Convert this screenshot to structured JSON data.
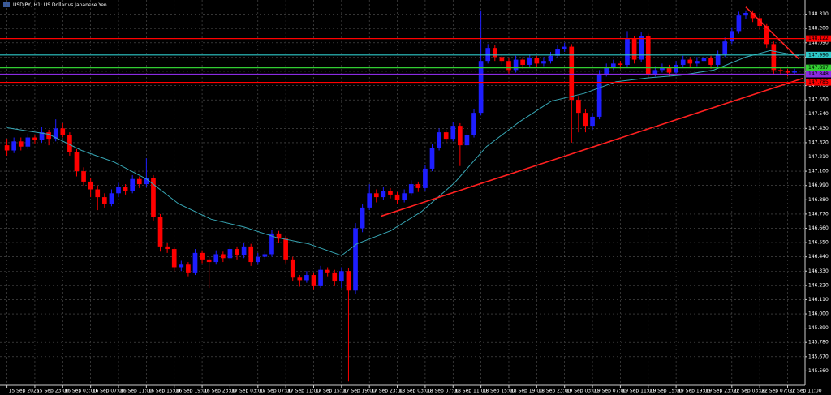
{
  "chart_data": {
    "type": "candlestick",
    "title": "USDJPY, H1: US Dollar vs Japanese Yen",
    "up_color": "#1e1eff",
    "down_color": "#ff0000",
    "ma_color": "#37a6b4",
    "grid": true,
    "xlim": [
      -1,
      114.5
    ],
    "ylim": [
      145.45,
      148.42
    ],
    "yticks": [
      {
        "value": 148.31,
        "label": "148.310"
      },
      {
        "value": 148.2,
        "label": "148.200"
      },
      {
        "value": 148.09,
        "label": "148.090"
      },
      {
        "value": 147.98,
        "label": "147.980"
      },
      {
        "value": 147.87,
        "label": "147.870"
      },
      {
        "value": 147.76,
        "label": "147.760"
      },
      {
        "value": 147.65,
        "label": "147.650"
      },
      {
        "value": 147.54,
        "label": "147.540"
      },
      {
        "value": 147.43,
        "label": "147.430"
      },
      {
        "value": 147.32,
        "label": "147.320"
      },
      {
        "value": 147.21,
        "label": "147.210"
      },
      {
        "value": 147.1,
        "label": "147.100"
      },
      {
        "value": 146.99,
        "label": "146.990"
      },
      {
        "value": 146.88,
        "label": "146.880"
      },
      {
        "value": 146.77,
        "label": "146.770"
      },
      {
        "value": 146.66,
        "label": "146.660"
      },
      {
        "value": 146.55,
        "label": "146.550"
      },
      {
        "value": 146.44,
        "label": "146.440"
      },
      {
        "value": 146.33,
        "label": "146.330"
      },
      {
        "value": 146.22,
        "label": "146.220"
      },
      {
        "value": 146.11,
        "label": "146.110"
      },
      {
        "value": 146.0,
        "label": "146.000"
      },
      {
        "value": 145.89,
        "label": "145.890"
      },
      {
        "value": 145.78,
        "label": "145.780"
      },
      {
        "value": 145.67,
        "label": "145.670"
      },
      {
        "value": 145.56,
        "label": "145.560"
      }
    ],
    "xticks": [
      {
        "value": 0,
        "label": "15 Sep 2025"
      },
      {
        "value": 4,
        "label": "15 Sep 23:00"
      },
      {
        "value": 8,
        "label": "16 Sep 03:00"
      },
      {
        "value": 12,
        "label": "16 Sep 07:00"
      },
      {
        "value": 16,
        "label": "16 Sep 11:00"
      },
      {
        "value": 20,
        "label": "16 Sep 15:00"
      },
      {
        "value": 24,
        "label": "16 Sep 19:00"
      },
      {
        "value": 28,
        "label": "16 Sep 23:00"
      },
      {
        "value": 32,
        "label": "17 Sep 03:00"
      },
      {
        "value": 36,
        "label": "17 Sep 07:00"
      },
      {
        "value": 40,
        "label": "17 Sep 11:00"
      },
      {
        "value": 44,
        "label": "17 Sep 15:00"
      },
      {
        "value": 48,
        "label": "17 Sep 19:00"
      },
      {
        "value": 52,
        "label": "17 Sep 23:00"
      },
      {
        "value": 56,
        "label": "18 Sep 03:00"
      },
      {
        "value": 60,
        "label": "18 Sep 07:00"
      },
      {
        "value": 64,
        "label": "18 Sep 11:00"
      },
      {
        "value": 68,
        "label": "18 Sep 15:00"
      },
      {
        "value": 72,
        "label": "18 Sep 19:00"
      },
      {
        "value": 76,
        "label": "18 Sep 23:00"
      },
      {
        "value": 80,
        "label": "19 Sep 03:00"
      },
      {
        "value": 84,
        "label": "19 Sep 07:00"
      },
      {
        "value": 88,
        "label": "19 Sep 11:00"
      },
      {
        "value": 92,
        "label": "19 Sep 15:00"
      },
      {
        "value": 96,
        "label": "19 Sep 19:00"
      },
      {
        "value": 100,
        "label": "19 Sep 23:00"
      },
      {
        "value": 104,
        "label": "22 Sep 03:00"
      },
      {
        "value": 108,
        "label": "22 Sep 07:00"
      },
      {
        "value": 112,
        "label": "22 Sep 11:00"
      }
    ],
    "candles": [
      [
        147.3,
        147.35,
        147.22,
        147.26
      ],
      [
        147.26,
        147.36,
        147.24,
        147.33
      ],
      [
        147.33,
        147.36,
        147.26,
        147.29
      ],
      [
        147.29,
        147.39,
        147.27,
        147.36
      ],
      [
        147.36,
        147.38,
        147.31,
        147.34
      ],
      [
        147.34,
        147.44,
        147.32,
        147.4
      ],
      [
        147.4,
        147.42,
        147.3,
        147.35
      ],
      [
        147.35,
        147.5,
        147.33,
        147.43
      ],
      [
        147.43,
        147.47,
        147.36,
        147.38
      ],
      [
        147.38,
        147.4,
        147.22,
        147.25
      ],
      [
        147.25,
        147.27,
        147.06,
        147.1
      ],
      [
        147.1,
        147.13,
        146.99,
        147.02
      ],
      [
        147.02,
        147.05,
        146.9,
        146.96
      ],
      [
        146.96,
        146.99,
        146.8,
        146.9
      ],
      [
        146.9,
        146.93,
        146.82,
        146.85
      ],
      [
        146.85,
        146.96,
        146.83,
        146.93
      ],
      [
        146.93,
        147.01,
        146.9,
        146.98
      ],
      [
        146.98,
        147.0,
        146.92,
        146.95
      ],
      [
        146.95,
        147.07,
        146.93,
        147.04
      ],
      [
        147.04,
        147.06,
        146.97,
        147.0
      ],
      [
        147.0,
        147.2,
        146.98,
        147.05
      ],
      [
        147.05,
        147.07,
        146.72,
        146.75
      ],
      [
        146.75,
        146.77,
        146.48,
        146.52
      ],
      [
        146.52,
        146.55,
        146.47,
        146.5
      ],
      [
        146.5,
        146.52,
        146.33,
        146.36
      ],
      [
        146.36,
        146.41,
        146.33,
        146.38
      ],
      [
        146.38,
        146.4,
        146.29,
        146.32
      ],
      [
        146.32,
        146.5,
        146.3,
        146.47
      ],
      [
        146.47,
        146.49,
        146.39,
        146.42
      ],
      [
        146.42,
        146.44,
        146.2,
        146.4
      ],
      [
        146.4,
        146.49,
        146.38,
        146.46
      ],
      [
        146.46,
        146.48,
        146.4,
        146.43
      ],
      [
        146.43,
        146.53,
        146.41,
        146.5
      ],
      [
        146.5,
        146.52,
        146.42,
        146.45
      ],
      [
        146.45,
        146.55,
        146.43,
        146.52
      ],
      [
        146.52,
        146.54,
        146.37,
        146.4
      ],
      [
        146.4,
        146.47,
        146.38,
        146.44
      ],
      [
        146.44,
        146.49,
        146.42,
        146.46
      ],
      [
        146.46,
        146.65,
        146.44,
        146.62
      ],
      [
        146.62,
        146.64,
        146.55,
        146.58
      ],
      [
        146.58,
        146.6,
        146.39,
        146.42
      ],
      [
        146.42,
        146.44,
        146.25,
        146.28
      ],
      [
        146.28,
        146.3,
        146.21,
        146.26
      ],
      [
        146.26,
        146.33,
        146.24,
        146.3
      ],
      [
        146.3,
        146.32,
        146.19,
        146.22
      ],
      [
        146.22,
        146.37,
        146.2,
        146.34
      ],
      [
        146.34,
        146.36,
        146.29,
        146.32
      ],
      [
        146.32,
        146.34,
        146.22,
        146.25
      ],
      [
        146.25,
        146.36,
        146.2,
        146.33
      ],
      [
        146.33,
        146.35,
        145.48,
        146.18
      ],
      [
        146.18,
        146.7,
        146.15,
        146.66
      ],
      [
        146.66,
        146.85,
        146.63,
        146.82
      ],
      [
        146.82,
        147.0,
        146.8,
        146.93
      ],
      [
        146.93,
        146.96,
        146.86,
        146.9
      ],
      [
        146.9,
        146.98,
        146.88,
        146.95
      ],
      [
        146.95,
        146.97,
        146.89,
        146.92
      ],
      [
        146.92,
        146.94,
        146.85,
        146.88
      ],
      [
        146.88,
        146.96,
        146.86,
        146.93
      ],
      [
        146.93,
        147.03,
        146.91,
        147.0
      ],
      [
        147.0,
        147.02,
        146.94,
        146.97
      ],
      [
        146.97,
        147.15,
        146.95,
        147.12
      ],
      [
        147.12,
        147.31,
        147.1,
        147.28
      ],
      [
        147.28,
        147.43,
        147.26,
        147.4
      ],
      [
        147.4,
        147.42,
        147.32,
        147.35
      ],
      [
        147.35,
        147.48,
        147.33,
        147.45
      ],
      [
        147.45,
        147.47,
        147.14,
        147.3
      ],
      [
        147.3,
        147.41,
        147.28,
        147.38
      ],
      [
        147.38,
        147.58,
        147.36,
        147.55
      ],
      [
        147.55,
        148.34,
        147.53,
        147.95
      ],
      [
        147.95,
        148.08,
        147.93,
        148.05
      ],
      [
        148.05,
        148.07,
        147.95,
        147.98
      ],
      [
        147.98,
        148.0,
        147.92,
        147.95
      ],
      [
        147.95,
        147.97,
        147.85,
        147.88
      ],
      [
        147.88,
        147.99,
        147.86,
        147.96
      ],
      [
        147.96,
        147.98,
        147.89,
        147.92
      ],
      [
        147.92,
        148.0,
        147.9,
        147.97
      ],
      [
        147.97,
        147.99,
        147.9,
        147.93
      ],
      [
        147.93,
        147.98,
        147.91,
        147.95
      ],
      [
        147.95,
        148.02,
        147.93,
        147.99
      ],
      [
        147.99,
        148.07,
        147.97,
        148.04
      ],
      [
        148.04,
        148.09,
        148.02,
        148.06
      ],
      [
        148.06,
        148.08,
        147.32,
        147.65
      ],
      [
        147.65,
        147.68,
        147.4,
        147.55
      ],
      [
        147.55,
        147.58,
        147.4,
        147.45
      ],
      [
        147.45,
        147.55,
        147.42,
        147.52
      ],
      [
        147.52,
        147.88,
        147.5,
        147.85
      ],
      [
        147.85,
        147.93,
        147.83,
        147.9
      ],
      [
        147.9,
        147.96,
        147.88,
        147.93
      ],
      [
        147.93,
        147.95,
        147.89,
        147.92
      ],
      [
        147.92,
        148.18,
        147.9,
        148.12
      ],
      [
        148.12,
        148.14,
        147.93,
        147.96
      ],
      [
        147.96,
        148.17,
        147.94,
        148.14
      ],
      [
        148.14,
        148.16,
        147.82,
        147.85
      ],
      [
        147.85,
        147.91,
        147.83,
        147.88
      ],
      [
        147.88,
        147.93,
        147.86,
        147.9
      ],
      [
        147.9,
        147.92,
        147.83,
        147.86
      ],
      [
        147.86,
        147.95,
        147.84,
        147.92
      ],
      [
        147.92,
        147.99,
        147.9,
        147.96
      ],
      [
        147.96,
        147.98,
        147.9,
        147.93
      ],
      [
        147.93,
        147.98,
        147.91,
        147.95
      ],
      [
        147.95,
        148.0,
        147.93,
        147.97
      ],
      [
        147.97,
        147.99,
        147.89,
        147.92
      ],
      [
        147.92,
        148.03,
        147.9,
        148.0
      ],
      [
        148.0,
        148.13,
        147.98,
        148.1
      ],
      [
        148.1,
        148.21,
        148.08,
        148.18
      ],
      [
        148.18,
        148.33,
        148.16,
        148.3
      ],
      [
        148.3,
        148.34,
        148.27,
        148.32
      ],
      [
        148.32,
        148.34,
        148.25,
        148.28
      ],
      [
        148.28,
        148.3,
        148.19,
        148.22
      ],
      [
        148.22,
        148.24,
        148.05,
        148.08
      ],
      [
        148.08,
        148.1,
        147.85,
        147.88
      ],
      [
        147.88,
        147.9,
        147.84,
        147.87
      ],
      [
        147.87,
        147.89,
        147.83,
        147.86
      ],
      [
        147.86,
        147.89,
        147.84,
        147.87
      ]
    ],
    "ma": {
      "x": [
        0,
        6,
        10.7,
        15.4,
        20,
        24.6,
        29.3,
        34,
        38.6,
        43.3,
        48,
        50.2,
        55,
        59.5,
        64.2,
        68.8,
        73.5,
        78.1,
        82.8,
        87.4,
        92,
        96.7,
        101.4,
        106,
        109.5,
        113.6
      ],
      "values": [
        147.435,
        147.385,
        147.26,
        147.17,
        147.04,
        146.85,
        146.73,
        146.67,
        146.59,
        146.54,
        146.45,
        146.54,
        146.64,
        146.79,
        147.01,
        147.29,
        147.48,
        147.64,
        147.7,
        147.79,
        147.82,
        147.84,
        147.88,
        147.98,
        148.03,
        147.99
      ]
    },
    "hlines": [
      {
        "value": 148.122,
        "color": "#ff0000",
        "label": "148.122"
      },
      {
        "value": 147.996,
        "color": "#2ec8c8",
        "label": "147.996"
      },
      {
        "value": 147.897,
        "color": "#32cd32",
        "label": "147.897"
      },
      {
        "value": 147.848,
        "color": "#8a2be2",
        "label": "147.848"
      },
      {
        "value": 147.785,
        "color": "#ff0000",
        "label": "147.785"
      }
    ],
    "trendlines": [
      {
        "color": "#ff2020",
        "from": [
          53.7,
          146.754
        ],
        "to": [
          114.2,
          147.816
        ]
      },
      {
        "color": "#ff2020",
        "from": [
          106,
          148.366
        ],
        "to": [
          113.6,
          147.966
        ]
      }
    ]
  }
}
